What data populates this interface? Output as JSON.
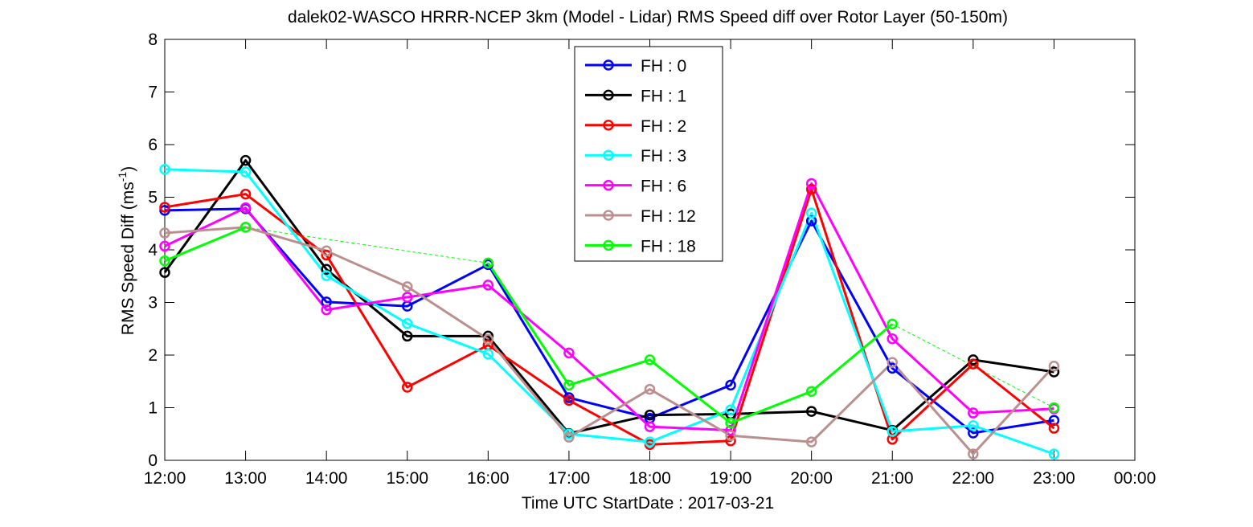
{
  "chart_data": {
    "type": "line",
    "title": "dalek02-WASCO HRRR-NCEP 3km (Model - Lidar) RMS Speed diff over Rotor Layer (50-150m)",
    "xlabel": "Time UTC    StartDate : 2017-03-21",
    "ylabel_main": "RMS Speed Diff (ms",
    "ylabel_sup": "-1",
    "ylabel_close": ")",
    "xlim": [
      12,
      24
    ],
    "ylim": [
      0,
      8
    ],
    "xticks": [
      12,
      13,
      14,
      15,
      16,
      17,
      18,
      19,
      20,
      21,
      22,
      23,
      24
    ],
    "xtick_labels": [
      "12:00",
      "13:00",
      "14:00",
      "15:00",
      "16:00",
      "17:00",
      "18:00",
      "19:00",
      "20:00",
      "21:00",
      "22:00",
      "23:00",
      "00:00"
    ],
    "yticks": [
      0,
      1,
      2,
      3,
      4,
      5,
      6,
      7,
      8
    ],
    "ytick_labels": [
      "0",
      "1",
      "2",
      "3",
      "4",
      "5",
      "6",
      "7",
      "8"
    ],
    "legend_position": "top-center",
    "x": [
      12,
      13,
      14,
      15,
      16,
      17,
      18,
      19,
      20,
      21,
      22,
      23
    ],
    "series": [
      {
        "name": "FH : 0",
        "color": "#0000ff",
        "values": [
          4.75,
          4.78,
          3.01,
          2.93,
          3.72,
          1.19,
          0.8,
          1.43,
          4.55,
          1.75,
          0.52,
          0.76
        ]
      },
      {
        "name": "FH : 1",
        "color": "#000000",
        "values": [
          3.57,
          5.7,
          3.63,
          2.36,
          2.36,
          0.51,
          0.86,
          0.88,
          0.93,
          0.57,
          1.91,
          1.68
        ]
      },
      {
        "name": "FH : 2",
        "color": "#ff0000",
        "values": [
          4.81,
          5.06,
          3.9,
          1.39,
          2.19,
          1.14,
          0.3,
          0.37,
          5.15,
          0.4,
          1.83,
          0.61
        ]
      },
      {
        "name": "FH : 3",
        "color": "#00ffff",
        "values": [
          5.53,
          5.48,
          3.51,
          2.6,
          2.02,
          0.5,
          0.35,
          0.96,
          4.7,
          0.55,
          0.66,
          0.12
        ]
      },
      {
        "name": "FH : 6",
        "color": "#ff00ff",
        "values": [
          4.07,
          4.8,
          2.86,
          3.1,
          3.33,
          2.04,
          0.64,
          0.57,
          5.26,
          2.31,
          0.9,
          0.98
        ]
      },
      {
        "name": "FH : 12",
        "color": "#bc8f8f",
        "values": [
          4.32,
          4.43,
          3.98,
          3.3,
          2.3,
          0.44,
          1.35,
          0.47,
          0.35,
          1.86,
          0.12,
          1.79
        ]
      },
      {
        "name": "FH : 18",
        "color": "#00ff00",
        "values": [
          3.79,
          4.43,
          null,
          null,
          3.75,
          1.43,
          1.91,
          0.71,
          1.31,
          2.59,
          null,
          1.0
        ]
      }
    ],
    "gap_bridges": [
      {
        "series": "FH : 18",
        "color": "#00ff00",
        "x": [
          13,
          16
        ],
        "y": [
          4.43,
          3.75
        ]
      },
      {
        "series": "FH : 18",
        "color": "#00ff00",
        "x": [
          21,
          23
        ],
        "y": [
          2.59,
          1.0
        ]
      }
    ]
  }
}
